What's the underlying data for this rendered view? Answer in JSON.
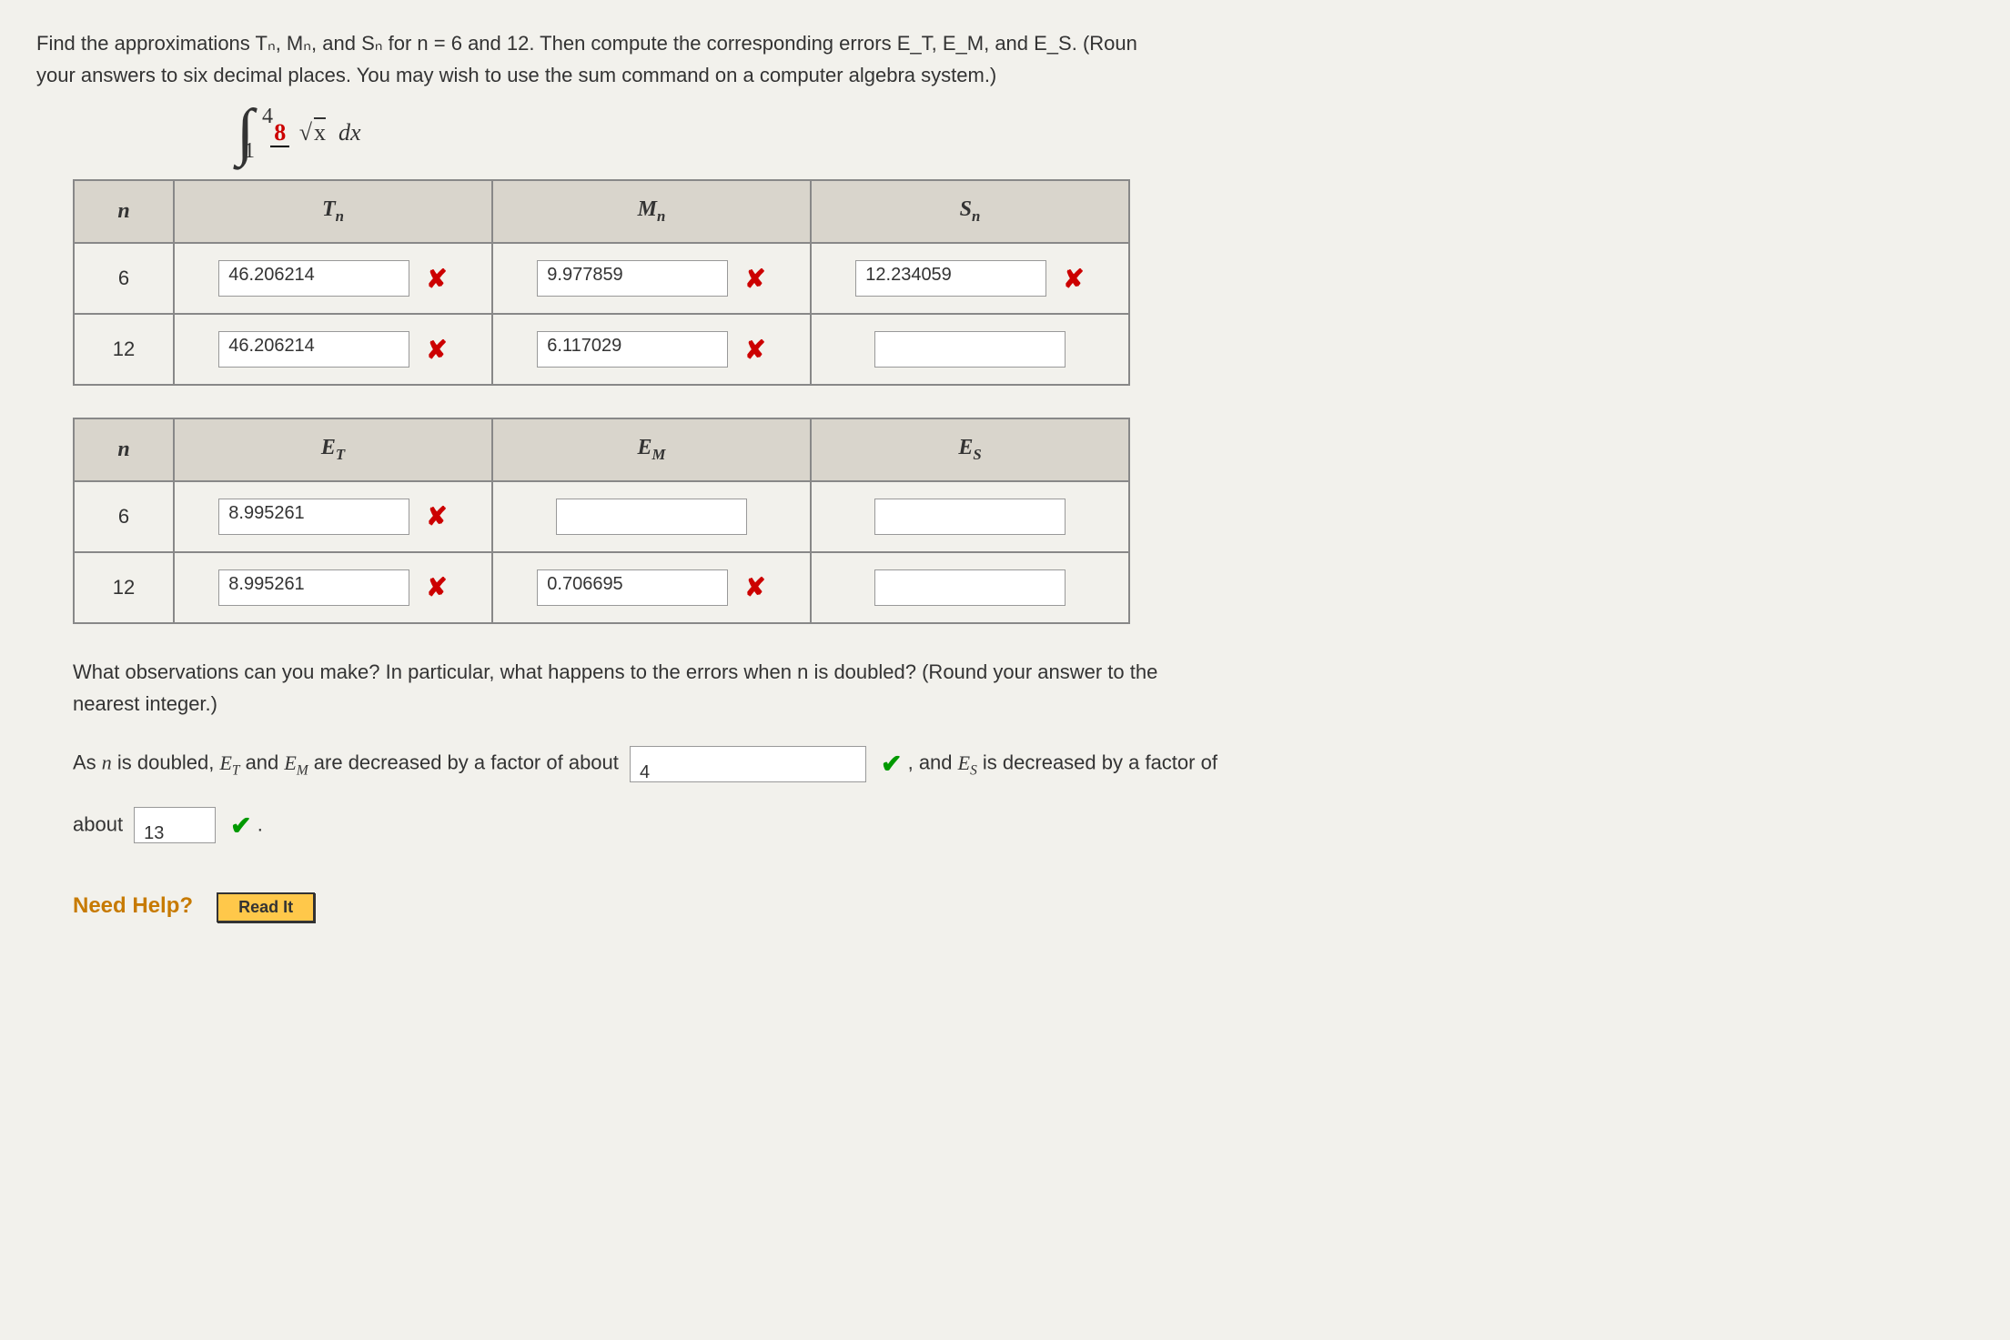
{
  "question": {
    "line1": "Find the approximations Tₙ, Mₙ, and Sₙ for n = 6 and 12. Then compute the corresponding errors E_T, E_M, and E_S. (Roun",
    "line2": "your answers to six decimal places. You may wish to use the sum command on a computer algebra system.)"
  },
  "integral": {
    "upper": "4",
    "lower": "1",
    "numerator": "8",
    "denom_radical": "x",
    "dx": "dx"
  },
  "table1": {
    "headers": {
      "n": "n",
      "Tn": "T",
      "Mn": "M",
      "Sn": "S",
      "sub": "n"
    },
    "rows": [
      {
        "n": "6",
        "Tn": {
          "value": "46.206214",
          "mark": "x"
        },
        "Mn": {
          "value": "9.977859",
          "mark": "x"
        },
        "Sn": {
          "value": "12.234059",
          "mark": "x"
        }
      },
      {
        "n": "12",
        "Tn": {
          "value": "46.206214",
          "mark": "x"
        },
        "Mn": {
          "value": "6.117029",
          "mark": "x"
        },
        "Sn": {
          "value": "",
          "mark": ""
        }
      }
    ]
  },
  "table2": {
    "headers": {
      "n": "n",
      "ET": "E",
      "EM": "E",
      "ES": "E",
      "sub_T": "T",
      "sub_M": "M",
      "sub_S": "S"
    },
    "rows": [
      {
        "n": "6",
        "ET": {
          "value": "8.995261",
          "mark": "x"
        },
        "EM": {
          "value": "",
          "mark": ""
        },
        "ES": {
          "value": "",
          "mark": ""
        }
      },
      {
        "n": "12",
        "ET": {
          "value": "8.995261",
          "mark": "x"
        },
        "EM": {
          "value": "0.706695",
          "mark": "x"
        },
        "ES": {
          "value": "",
          "mark": ""
        }
      }
    ]
  },
  "observation": {
    "text": "What observations can you make? In particular, what happens to the errors when n is doubled? (Round your answer to the",
    "text2": "nearest integer.)"
  },
  "fill": {
    "part1a": "As ",
    "part1b": " is doubled, ",
    "part1c": " and ",
    "part1d": " are decreased by a factor of about ",
    "factor1": {
      "value": "4",
      "mark": "check"
    },
    "part2a": ", and ",
    "part2b": " is decreased by a factor of",
    "part3": "about ",
    "factor2": {
      "value": "13",
      "mark": "check"
    },
    "period": "."
  },
  "help": {
    "label": "Need Help?",
    "button": "Read It"
  },
  "marks": {
    "x": "✘",
    "check": "✔"
  },
  "vars": {
    "n": "n",
    "ET": "E",
    "EM": "E",
    "ES": "E",
    "T": "T",
    "M": "M",
    "S": "S"
  }
}
